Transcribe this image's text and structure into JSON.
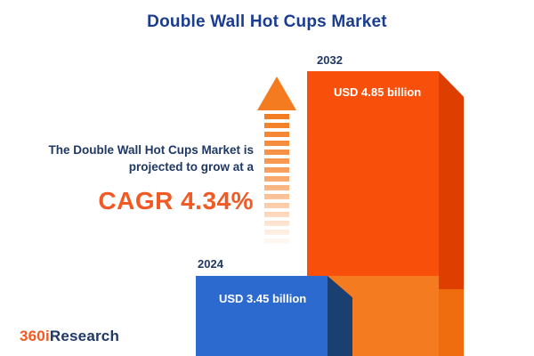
{
  "title": "Double Wall Hot Cups Market",
  "annotation": {
    "line1": "The Double Wall Hot Cups Market is",
    "line2": "projected to grow at a",
    "cagr": "CAGR 4.34%"
  },
  "chart_data": {
    "type": "bar",
    "title": "Double Wall Hot Cups Market",
    "categories": [
      "2024",
      "2032"
    ],
    "values": [
      3.45,
      4.85
    ],
    "value_unit": "USD billion",
    "bar_labels": [
      "USD 3.45 billion",
      "USD 4.85 billion"
    ],
    "cagr_percent": 4.34,
    "bar_colors": [
      "#2d6ad0",
      "#f8500a"
    ],
    "bar_side_colors": [
      "#1a4071",
      "#de3f00"
    ],
    "ylim": [
      0,
      5
    ],
    "grid": false,
    "legend_position": "none",
    "style": "3d-infographic"
  },
  "logo": {
    "prefix": "360i",
    "suffix": "Research"
  },
  "colors": {
    "title_navy": "#1b3d8f",
    "label_navy": "#1f3864",
    "accent_orange": "#f15a24",
    "arrow_orange": "#f47b20",
    "background": "#ffffff"
  }
}
